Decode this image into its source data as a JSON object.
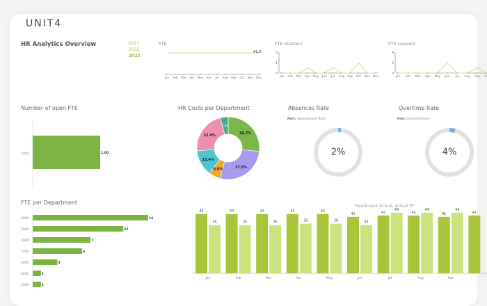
{
  "header": {
    "logo": "UNIT4",
    "title": "HR Analytics Overview",
    "years": [
      "2021",
      "2022",
      "2023"
    ],
    "selected_year": "2023"
  },
  "fte": {
    "title": "FTE",
    "last_label": "41,5"
  },
  "starters": {
    "title": "FTE Starters"
  },
  "leavers": {
    "title": "FTE Leavers"
  },
  "open_fte": {
    "title": "Number of open FTE"
  },
  "hr_costs": {
    "title": "HR Costs per Department"
  },
  "absences": {
    "title": "Absences Rate",
    "part_label": "Part:",
    "part_value": "Absenteeism Rate",
    "value_text": "2%"
  },
  "overtime": {
    "title": "Overtime Rate",
    "part_label": "Part:",
    "part_value": "Overtime Rate",
    "value_text": "4%"
  },
  "fte_dept": {
    "title": "FTE per Department"
  },
  "headcount": {
    "title": "Headcount Actual, Actual PY"
  },
  "colors": {
    "bar_green": "#7cb342",
    "actual": "#a9c63b",
    "actual_py": "#cbe37e",
    "line": "#d4e08a",
    "ring": "#e2e2e2",
    "ring_fill": "#7fa8e0"
  },
  "chart_data": [
    {
      "id": "fte",
      "type": "line",
      "categories": [
        "Jan",
        "Feb",
        "Mar",
        "Apr",
        "May",
        "Jun",
        "Jul",
        "Aug",
        "Sep",
        "Oct",
        "Nov",
        "Dec"
      ],
      "values": [
        41.5,
        41.5,
        41.5,
        41.5,
        41.5,
        41.5,
        41.5,
        41.5,
        41.5,
        41.5,
        41.5,
        41.5
      ],
      "data_labels": {
        "Dec": "41,5"
      }
    },
    {
      "id": "starters",
      "type": "line",
      "categories": [
        "Jan",
        "Feb",
        "Mar",
        "Apr",
        "May",
        "Jun",
        "Jul",
        "Aug",
        "Sep",
        "Oct",
        "Nov",
        "Dec"
      ],
      "values": [
        0,
        0,
        0,
        0.5,
        0,
        0,
        0.5,
        0,
        0,
        1,
        0,
        0
      ],
      "ylim": [
        0,
        2
      ],
      "yticks": [
        "0",
        "1",
        "2"
      ]
    },
    {
      "id": "leavers",
      "type": "line",
      "categories": [
        "Jan",
        "Feb",
        "Mar",
        "Apr",
        "May",
        "Jun",
        "Jul",
        "Aug",
        "Sep",
        "Oct"
      ],
      "values": [
        0,
        0,
        0,
        0,
        0,
        2,
        0,
        0,
        1,
        0
      ],
      "ylim": [
        0,
        4
      ],
      "yticks": [
        "0",
        "2",
        "4"
      ]
    },
    {
      "id": "open_fte",
      "type": "bar",
      "orientation": "horizontal",
      "categories": [
        "5000"
      ],
      "values": [
        1
      ],
      "data_labels": [
        "1,00"
      ]
    },
    {
      "id": "hr_costs",
      "type": "pie",
      "donut": true,
      "labels": [
        "26.7%",
        "27.5%",
        "6.0%",
        "13.4%",
        "22.4%",
        "4.0%"
      ],
      "values": [
        26.7,
        27.5,
        6.0,
        13.4,
        22.4,
        4.0
      ],
      "colors": [
        "#7ab648",
        "#a79bf0",
        "#f0a830",
        "#4fc3cf",
        "#ef8fb0",
        "#4aa88a"
      ]
    },
    {
      "id": "absences",
      "type": "pie",
      "gauge": true,
      "value": 2
    },
    {
      "id": "overtime",
      "type": "pie",
      "gauge": true,
      "value": 4
    },
    {
      "id": "fte_dept",
      "type": "bar",
      "orientation": "horizontal",
      "categories": [
        "2000",
        "5000",
        "4000",
        "1000",
        "3000",
        "6000",
        "7000"
      ],
      "values": [
        14,
        11,
        7,
        6,
        3,
        1,
        1
      ],
      "data_labels": [
        "14",
        "11",
        "7",
        "6",
        "3",
        "1",
        "1"
      ]
    },
    {
      "id": "headcount",
      "type": "bar",
      "title": "Headcount Actual, Actual PY",
      "categories": [
        "Jan",
        "Feb",
        "Mar",
        "Apr",
        "May",
        "Jun",
        "Jul",
        "Aug",
        "Sep",
        "Oct"
      ],
      "series": [
        {
          "values": [
            43,
            43,
            43,
            43,
            43,
            41,
            42,
            42,
            41,
            42
          ],
          "labels": [
            "43",
            "43",
            "43",
            "43",
            "43",
            "41",
            "42",
            "42",
            "41",
            "42"
          ]
        },
        {
          "values": [
            35,
            35,
            35,
            36,
            36,
            35,
            44,
            44,
            44,
            null
          ],
          "labels": [
            "35",
            "35",
            "35",
            "36",
            "36",
            "35",
            "44",
            "44",
            "44",
            ""
          ]
        }
      ]
    }
  ]
}
